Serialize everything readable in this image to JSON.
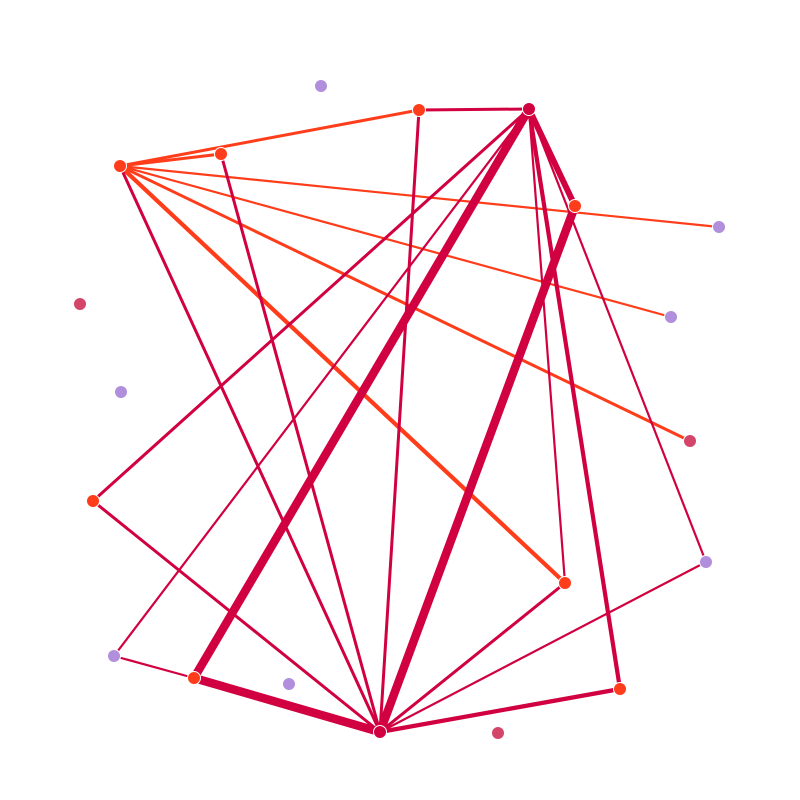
{
  "colors": {
    "red_crimson": "#d10040",
    "red_orange": "#ff3d1a",
    "purple": "#b18fdc",
    "rose": "#d3466a",
    "background": "#ffffff",
    "node_stroke": "#ffffff"
  },
  "graph": {
    "nodes": [
      {
        "id": "n1",
        "color": "purple"
      },
      {
        "id": "n2",
        "color": "red_orange"
      },
      {
        "id": "n3",
        "color": "red_crimson"
      },
      {
        "id": "n4",
        "color": "red_orange"
      },
      {
        "id": "n5",
        "color": "red_orange"
      },
      {
        "id": "n6",
        "color": "red_orange"
      },
      {
        "id": "n7",
        "color": "purple"
      },
      {
        "id": "n8",
        "color": "rose"
      },
      {
        "id": "n9",
        "color": "purple"
      },
      {
        "id": "n10",
        "color": "purple"
      },
      {
        "id": "n11",
        "color": "rose"
      },
      {
        "id": "n12",
        "color": "red_orange"
      },
      {
        "id": "n13",
        "color": "purple"
      },
      {
        "id": "n14",
        "color": "red_orange"
      },
      {
        "id": "n15",
        "color": "purple"
      },
      {
        "id": "n16",
        "color": "red_orange"
      },
      {
        "id": "n17",
        "color": "purple"
      },
      {
        "id": "n18",
        "color": "red_orange"
      },
      {
        "id": "n19",
        "color": "red_crimson"
      },
      {
        "id": "n20",
        "color": "rose"
      }
    ],
    "edges": [
      {
        "source": "n3",
        "target": "n6",
        "weight": 4,
        "color": "red_crimson"
      },
      {
        "source": "n3",
        "target": "n2",
        "weight": 2,
        "color": "red_crimson"
      },
      {
        "source": "n4",
        "target": "n2",
        "weight": 2,
        "color": "red_orange"
      },
      {
        "source": "n4",
        "target": "n5",
        "weight": 2,
        "color": "red_orange"
      },
      {
        "source": "n4",
        "target": "n7",
        "weight": 1.5,
        "color": "red_orange"
      },
      {
        "source": "n4",
        "target": "n9",
        "weight": 1.5,
        "color": "red_orange"
      },
      {
        "source": "n4",
        "target": "n11",
        "weight": 2,
        "color": "red_orange"
      },
      {
        "source": "n4",
        "target": "n14",
        "weight": 3,
        "color": "red_orange"
      },
      {
        "source": "n4",
        "target": "n19",
        "weight": 2,
        "color": "red_crimson"
      },
      {
        "source": "n6",
        "target": "n19",
        "weight": 5,
        "color": "red_crimson"
      },
      {
        "source": "n3",
        "target": "n12",
        "weight": 2,
        "color": "red_crimson"
      },
      {
        "source": "n3",
        "target": "n16",
        "weight": 5,
        "color": "red_crimson"
      },
      {
        "source": "n3",
        "target": "n15",
        "weight": 1.5,
        "color": "red_crimson"
      },
      {
        "source": "n3",
        "target": "n14",
        "weight": 1.5,
        "color": "red_crimson"
      },
      {
        "source": "n3",
        "target": "n18",
        "weight": 3,
        "color": "red_crimson"
      },
      {
        "source": "n3",
        "target": "n13",
        "weight": 1.5,
        "color": "red_crimson"
      },
      {
        "source": "n2",
        "target": "n19",
        "weight": 2,
        "color": "red_crimson"
      },
      {
        "source": "n5",
        "target": "n19",
        "weight": 2,
        "color": "red_crimson"
      },
      {
        "source": "n12",
        "target": "n19",
        "weight": 2,
        "color": "red_crimson"
      },
      {
        "source": "n15",
        "target": "n16",
        "weight": 1.5,
        "color": "red_crimson"
      },
      {
        "source": "n16",
        "target": "n19",
        "weight": 5,
        "color": "red_crimson"
      },
      {
        "source": "n14",
        "target": "n19",
        "weight": 2,
        "color": "red_crimson"
      },
      {
        "source": "n13",
        "target": "n19",
        "weight": 1.5,
        "color": "red_crimson"
      },
      {
        "source": "n18",
        "target": "n19",
        "weight": 3,
        "color": "red_crimson"
      }
    ]
  }
}
